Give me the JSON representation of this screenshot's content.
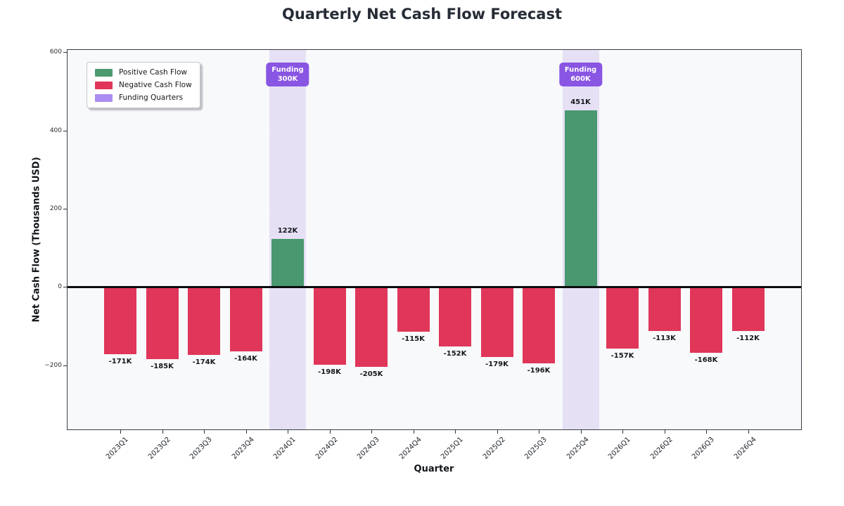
{
  "chart_data": {
    "type": "bar",
    "title": "Quarterly Net Cash Flow Forecast",
    "xlabel": "Quarter",
    "ylabel": "Net Cash Flow (Thousands USD)",
    "categories": [
      "2023Q1",
      "2023Q2",
      "2023Q3",
      "2023Q4",
      "2024Q1",
      "2024Q2",
      "2024Q3",
      "2024Q4",
      "2025Q1",
      "2025Q2",
      "2025Q3",
      "2025Q4",
      "2026Q1",
      "2026Q2",
      "2026Q3",
      "2026Q4"
    ],
    "values": [
      -171,
      -185,
      -174,
      -164,
      122,
      -198,
      -205,
      -115,
      -152,
      -179,
      -196,
      451,
      -157,
      -113,
      -168,
      -112
    ],
    "value_labels": [
      "-171K",
      "-185K",
      "-174K",
      "-164K",
      "122K",
      "-198K",
      "-205K",
      "-115K",
      "-152K",
      "-179K",
      "-196K",
      "451K",
      "-157K",
      "-113K",
      "-168K",
      "-112K"
    ],
    "ylim": [
      -364,
      606
    ],
    "yticks": [
      {
        "v": 600,
        "label": "600"
      },
      {
        "v": 400,
        "label": "400"
      },
      {
        "v": 200,
        "label": "200"
      },
      {
        "v": 0,
        "label": "0"
      },
      {
        "v": -200,
        "label": "−200"
      }
    ],
    "gridline_values": [
      600,
      400,
      200,
      -200
    ],
    "grid": true,
    "legend_position": "upper-left",
    "legend": [
      {
        "label": "Positive Cash Flow",
        "color": "#4c9b70",
        "style": "solid"
      },
      {
        "label": "Negative Cash Flow",
        "color": "#e03659",
        "style": "solid"
      },
      {
        "label": "Funding Quarters",
        "color": "#a98df0",
        "style": "dotted"
      }
    ],
    "funding_markers": [
      {
        "index": 4,
        "category": "2024Q1",
        "label": "Funding",
        "amount": "300K"
      },
      {
        "index": 11,
        "category": "2025Q4",
        "label": "Funding",
        "amount": "600K"
      }
    ],
    "colors": {
      "positive_bar": "rgba(46,139,87,0.85)",
      "negative_bar": "rgba(220,20,60,0.85)",
      "funding_band": "rgba(147,112,219,0.18)",
      "badge_bg": "#8955e3",
      "plot_bg": "#f8f9fb"
    }
  }
}
